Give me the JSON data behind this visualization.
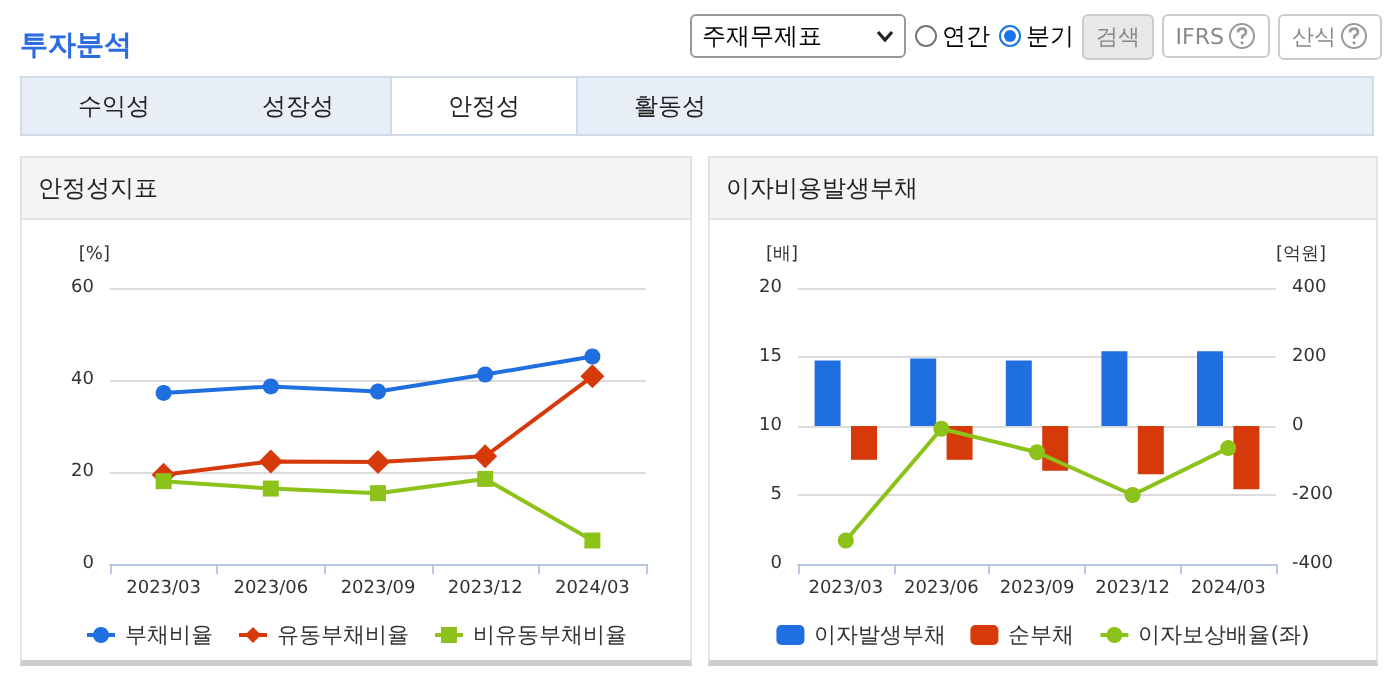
{
  "chart_data": [
    {
      "type": "other",
      "title": "투자분석",
      "annotations": [
        "주재무제표",
        "연간",
        "분기",
        "검색",
        "IFRS",
        "산식",
        "수익성",
        "성장성",
        "안정성",
        "활동성"
      ]
    },
    {
      "type": "line",
      "title": "안정성지표",
      "ylabel": "[%]",
      "categories": [
        "2023/03",
        "2023/06",
        "2023/09",
        "2023/12",
        "2024/03"
      ],
      "ylim": [
        0,
        60
      ],
      "yticks": [
        0,
        20,
        40,
        60
      ],
      "grid": "y",
      "legend": "bottom",
      "series": [
        {
          "name": "부채비율",
          "color": "#1f6fe0",
          "marker": "circle",
          "values": [
            37.2,
            38.6,
            37.5,
            41.2,
            45.1
          ]
        },
        {
          "name": "유동부채비율",
          "color": "#d63a0a",
          "marker": "diamond",
          "values": [
            19.4,
            22.3,
            22.2,
            23.4,
            40.8
          ]
        },
        {
          "name": "비유동부채비율",
          "color": "#8cc21a",
          "marker": "square",
          "values": [
            18.0,
            16.4,
            15.4,
            18.5,
            5.1
          ]
        }
      ]
    },
    {
      "type": "bar",
      "title": "이자비용발생부채",
      "ylabel": "[배]",
      "y2label": "[억원]",
      "categories": [
        "2023/03",
        "2023/06",
        "2023/09",
        "2023/12",
        "2024/03"
      ],
      "ylim": [
        0,
        20
      ],
      "yticks": [
        0,
        5,
        10,
        15,
        20
      ],
      "y2lim": [
        -400,
        400
      ],
      "y2ticks": [
        -400,
        -200,
        0,
        200,
        400
      ],
      "grid": "y",
      "legend": "bottom",
      "series": [
        {
          "name": "이자발생부채",
          "color": "#1f6fe0",
          "axis": "y2",
          "values": [
            190,
            196,
            190,
            217,
            217
          ]
        },
        {
          "name": "순부채",
          "color": "#d63a0a",
          "axis": "y2",
          "values": [
            -98,
            -98,
            -130,
            -140,
            -183
          ]
        },
        {
          "name": "이자보상배율(좌)",
          "type": "line",
          "color": "#8cc21a",
          "marker": "circle",
          "values": [
            1.7,
            9.8,
            8.1,
            5.0,
            8.4
          ]
        }
      ]
    }
  ]
}
